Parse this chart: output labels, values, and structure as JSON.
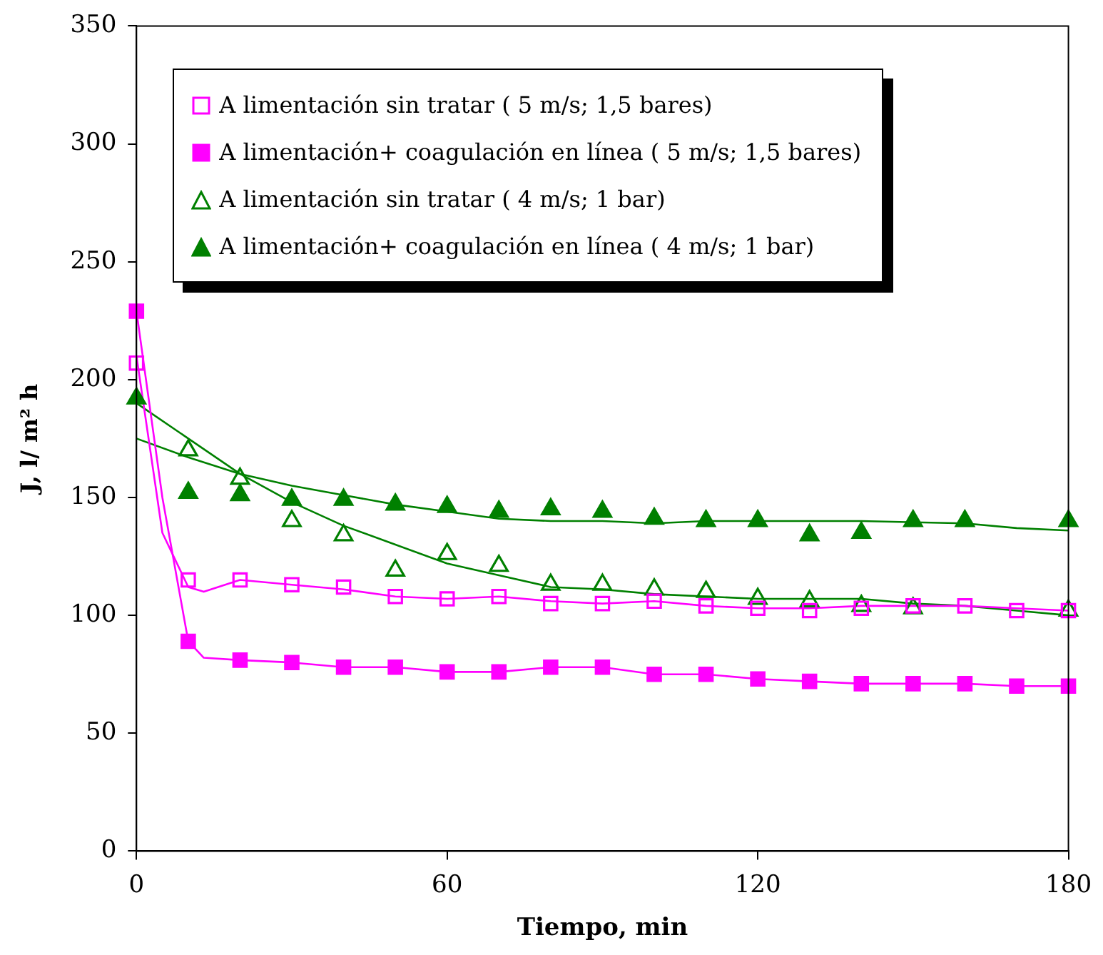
{
  "chart_data": {
    "type": "scatter",
    "xlabel": "Tiempo, min",
    "ylabel": "J, l/ m² h",
    "xlim": [
      0,
      180
    ],
    "xticks": [
      0,
      60,
      120,
      180
    ],
    "ylim": [
      0,
      350
    ],
    "yticks": [
      0,
      50,
      100,
      150,
      200,
      250,
      300,
      350
    ],
    "grid": false,
    "legend": "top",
    "line_style": "solid",
    "series": [
      {
        "name": "A limentación sin tratar ( 5 m/s; 1,5 bares)",
        "color": "#ff00ff",
        "marker": "square-open",
        "x": [
          0,
          10,
          20,
          30,
          40,
          50,
          60,
          70,
          80,
          90,
          100,
          110,
          120,
          130,
          140,
          150,
          160,
          170,
          180
        ],
        "values": [
          207,
          115,
          115,
          113,
          112,
          108,
          107,
          108,
          105,
          105,
          106,
          104,
          103,
          102,
          103,
          104,
          104,
          102,
          102
        ]
      },
      {
        "name": "A limentación+ coagulación en línea ( 5 m/s; 1,5 bares)",
        "color": "#ff00ff",
        "marker": "square",
        "x": [
          0,
          10,
          20,
          30,
          40,
          50,
          60,
          70,
          80,
          90,
          100,
          110,
          120,
          130,
          140,
          150,
          160,
          170,
          180
        ],
        "values": [
          229,
          89,
          81,
          80,
          78,
          78,
          76,
          76,
          78,
          78,
          75,
          75,
          73,
          72,
          71,
          71,
          71,
          70,
          70
        ]
      },
      {
        "name": "A limentación sin tratar ( 4 m/s; 1 bar)",
        "color": "#008000",
        "marker": "triangle-open",
        "x": [
          10,
          20,
          30,
          40,
          50,
          60,
          70,
          80,
          90,
          100,
          110,
          120,
          130,
          140,
          150,
          180
        ],
        "values": [
          170,
          158,
          140,
          134,
          119,
          126,
          121,
          113,
          113,
          111,
          110,
          107,
          106,
          104,
          103,
          102
        ]
      },
      {
        "name": "A limentación+ coagulación en línea ( 4 m/s; 1 bar)",
        "color": "#008000",
        "marker": "triangle",
        "x": [
          0,
          10,
          20,
          30,
          40,
          50,
          60,
          70,
          80,
          90,
          100,
          110,
          120,
          130,
          140,
          150,
          160,
          180
        ],
        "values": [
          192,
          152,
          151,
          149,
          149,
          147,
          146,
          144,
          145,
          144,
          141,
          140,
          140,
          134,
          135,
          140,
          140,
          140
        ]
      },
      {
        "type": "line",
        "color": "#ff00ff",
        "marker": "none",
        "x": [
          0,
          5,
          10,
          13,
          20,
          30,
          40,
          50,
          60,
          70,
          80,
          90,
          100,
          110,
          120,
          130,
          140,
          150,
          160,
          170,
          180
        ],
        "values": [
          210,
          135,
          112,
          110,
          115,
          113,
          111,
          108,
          107,
          108,
          106,
          105,
          106,
          104,
          103,
          103,
          104,
          104,
          104,
          103,
          102
        ]
      },
      {
        "type": "line",
        "color": "#ff00ff",
        "marker": "none",
        "x": [
          0,
          5,
          10,
          13,
          20,
          30,
          40,
          50,
          60,
          70,
          80,
          90,
          100,
          110,
          120,
          130,
          140,
          150,
          160,
          170,
          180
        ],
        "values": [
          229,
          150,
          89,
          82,
          81,
          80,
          78,
          78,
          76,
          76,
          78,
          78,
          75,
          75,
          73,
          72,
          71,
          71,
          71,
          70,
          70
        ]
      },
      {
        "type": "line",
        "color": "#008000",
        "marker": "none",
        "x": [
          0,
          10,
          20,
          30,
          40,
          50,
          60,
          70,
          80,
          90,
          100,
          120,
          140,
          150,
          160,
          170,
          180
        ],
        "values": [
          190,
          175,
          160,
          148,
          138,
          130,
          122,
          117,
          112,
          111,
          109,
          107,
          107,
          105,
          104,
          102,
          100
        ]
      },
      {
        "type": "line",
        "color": "#008000",
        "marker": "none",
        "x": [
          0,
          10,
          20,
          30,
          40,
          50,
          60,
          70,
          80,
          90,
          100,
          110,
          120,
          140,
          160,
          170,
          180
        ],
        "values": [
          175,
          167,
          160,
          155,
          151,
          147,
          144,
          141,
          140,
          140,
          139,
          140,
          140,
          140,
          139,
          137,
          136
        ]
      }
    ]
  }
}
